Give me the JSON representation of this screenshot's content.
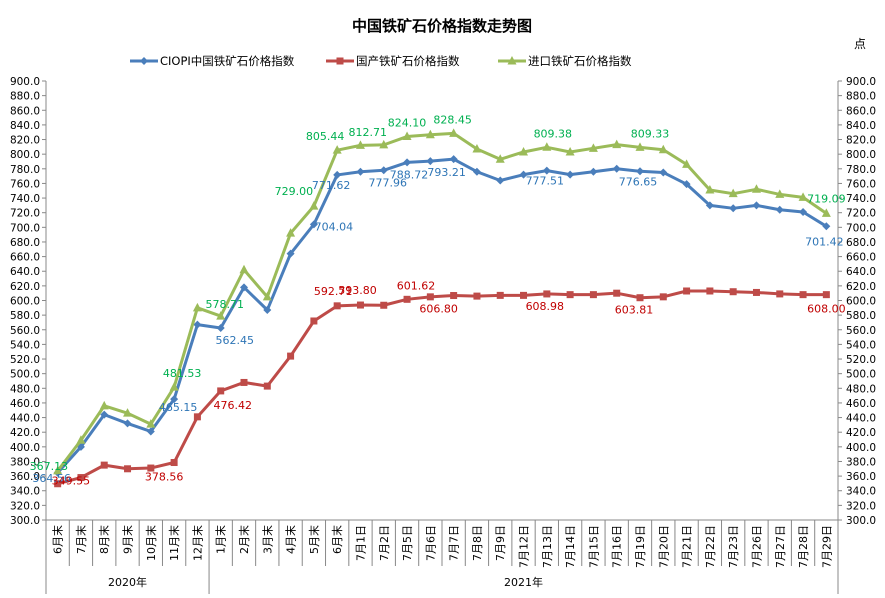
{
  "chart_data": {
    "type": "line",
    "title": "中国铁矿石价格指数走势图",
    "unit_label": "点",
    "ylim": [
      300,
      900
    ],
    "y_ticks": [
      "300.0",
      "320.0",
      "340.0",
      "360.0",
      "380.0",
      "400.0",
      "420.0",
      "440.0",
      "460.0",
      "480.0",
      "500.0",
      "520.0",
      "540.0",
      "560.0",
      "580.0",
      "600.0",
      "620.0",
      "640.0",
      "660.0",
      "680.0",
      "700.0",
      "720.0",
      "740.0",
      "760.0",
      "780.0",
      "800.0",
      "820.0",
      "840.0",
      "860.0",
      "880.0",
      "900.0"
    ],
    "categories": [
      "6月末",
      "7月末",
      "8月末",
      "9月末",
      "10月末",
      "11月末",
      "12月末",
      "1月末",
      "2月末",
      "3月末",
      "4月末",
      "5月末",
      "6月末",
      "7月1日",
      "7月2日",
      "7月5日",
      "7月6日",
      "7月7日",
      "7月8日",
      "7月9日",
      "7月12日",
      "7月13日",
      "7月14日",
      "7月15日",
      "7月16日",
      "7月19日",
      "7月20日",
      "7月21日",
      "7月22日",
      "7月23日",
      "7月26日",
      "7月27日",
      "7月28日",
      "7月29日"
    ],
    "year_groups": [
      {
        "label": "2020年",
        "start": 0,
        "end": 6
      },
      {
        "label": "2021年",
        "start": 7,
        "end": 33
      }
    ],
    "legend_position": "top",
    "grid": false,
    "series": [
      {
        "name": "CIOPI中国铁矿石价格指数",
        "color": "#4a7ebb",
        "label_color": "#2e75b6",
        "marker": "diamond",
        "values": [
          364.56,
          400,
          444,
          432,
          421,
          465.15,
          567,
          562.45,
          618,
          587,
          664,
          704.04,
          771.62,
          776,
          777.96,
          788.72,
          790.5,
          793.21,
          776,
          764,
          772,
          777.51,
          772,
          776,
          780,
          776.65,
          775,
          759,
          730,
          726,
          730,
          724,
          721,
          701.42
        ],
        "labels": [
          {
            "i": 0,
            "text": "364.56"
          },
          {
            "i": 5,
            "text": "465.15"
          },
          {
            "i": 7,
            "text": "562.45"
          },
          {
            "i": 11,
            "text": "704.04"
          },
          {
            "i": 12,
            "text": "771.62"
          },
          {
            "i": 14,
            "text": "777.96"
          },
          {
            "i": 15,
            "text": "788.72"
          },
          {
            "i": 17,
            "text": "793.21"
          },
          {
            "i": 21,
            "text": "777.51"
          },
          {
            "i": 25,
            "text": "776.65"
          },
          {
            "i": 33,
            "text": "701.42"
          }
        ]
      },
      {
        "name": "国产铁矿石价格指数",
        "color": "#be4b48",
        "label_color": "#c00000",
        "marker": "square",
        "values": [
          349.55,
          358,
          375,
          370,
          371,
          378.56,
          441,
          476.42,
          488,
          483,
          524,
          572,
          592.71,
          593.8,
          593.5,
          601.62,
          605,
          606.8,
          606,
          607,
          607,
          608.98,
          608,
          608,
          610,
          603.81,
          605,
          613,
          613,
          612,
          611,
          609,
          608,
          608
        ],
        "labels": [
          {
            "i": 0,
            "text": "349.55"
          },
          {
            "i": 5,
            "text": "378.56"
          },
          {
            "i": 7,
            "text": "476.42"
          },
          {
            "i": 12,
            "text": "592.71"
          },
          {
            "i": 13,
            "text": "593.80"
          },
          {
            "i": 15,
            "text": "601.62"
          },
          {
            "i": 17,
            "text": "606.80"
          },
          {
            "i": 21,
            "text": "608.98"
          },
          {
            "i": 25,
            "text": "603.81"
          },
          {
            "i": 33,
            "text": "608.00"
          }
        ]
      },
      {
        "name": "进口铁矿石价格指数",
        "color": "#9bbb59",
        "label_color": "#00b050",
        "marker": "triangle",
        "values": [
          367.13,
          409,
          456,
          446,
          431,
          481.53,
          590,
          578.71,
          642,
          605,
          692,
          729.0,
          805.44,
          812,
          812.71,
          824.1,
          826.5,
          828.45,
          807,
          793,
          803,
          809.38,
          803,
          808,
          813,
          809.33,
          806,
          786,
          751,
          746,
          752,
          745,
          741,
          719.09
        ],
        "labels": [
          {
            "i": 0,
            "text": "367.13"
          },
          {
            "i": 5,
            "text": "481.53"
          },
          {
            "i": 7,
            "text": "578.71"
          },
          {
            "i": 11,
            "text": "729.00"
          },
          {
            "i": 12,
            "text": "805.44"
          },
          {
            "i": 14,
            "text": "812.71"
          },
          {
            "i": 15,
            "text": "824.10"
          },
          {
            "i": 17,
            "text": "828.45"
          },
          {
            "i": 21,
            "text": "809.38"
          },
          {
            "i": 25,
            "text": "809.33"
          },
          {
            "i": 33,
            "text": "719.09"
          }
        ]
      }
    ]
  }
}
